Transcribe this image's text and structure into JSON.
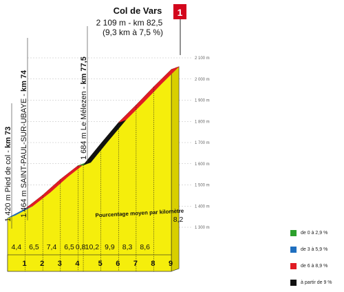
{
  "summit": {
    "name": "Col de Vars",
    "altitude_km": "2 109 m - km 82,5",
    "length_gradient": "(9,3 km à 7,5 %)",
    "category": "1"
  },
  "waypoints": [
    {
      "altitude": "1 420 m Pied de col - ",
      "km": "km 73"
    },
    {
      "altitude": "1 464 m SAINT-PAUL-SUR-UBAYE - ",
      "km": "km 74"
    },
    {
      "altitude": "1 684 m Le Mélezen - ",
      "km": "km 77,5"
    }
  ],
  "chart_data": {
    "type": "area",
    "title": "Col de Vars",
    "subtitle": "Pourcentage moyen par kilomètre",
    "xlabel": "",
    "ylabel": "",
    "ylim": [
      1300,
      2100
    ],
    "y_ticks": [
      "1 300 m",
      "1 400 m",
      "1 500 m",
      "1 600 m",
      "1 700 m",
      "1 800 m",
      "1 900 m",
      "2 000 m",
      "2 100 m"
    ],
    "km_labels": [
      "1",
      "2",
      "3",
      "4",
      "5",
      "6",
      "7",
      "8",
      "9"
    ],
    "segment_gradients": [
      "4,4",
      "6,5",
      "7,4",
      "6,5",
      "0,8",
      "10,2",
      "9,9",
      "8,3",
      "8,6",
      "8,2"
    ],
    "segment_values": [
      4.4,
      6.5,
      7.4,
      6.5,
      0.8,
      10.2,
      9.9,
      8.3,
      8.6,
      8.2
    ],
    "segment_lengths_km": [
      1,
      1,
      1,
      1,
      0.3,
      1,
      1,
      1,
      1,
      1
    ],
    "start_altitude_m": 1343,
    "summit_altitude_m": 2109
  },
  "legend": [
    {
      "label": "de 0 à 2,9 %",
      "color": "#2ca02c"
    },
    {
      "label": "de 3 à 5,9 %",
      "color": "#1f6fbf"
    },
    {
      "label": "de 6 à 8,9 %",
      "color": "#e01b24"
    },
    {
      "label": "à partir de 9 %",
      "color": "#111111"
    }
  ],
  "colors": {
    "fill": "#f5ee0c",
    "side": "#d8cf00",
    "grid": "#b9b9b9"
  }
}
